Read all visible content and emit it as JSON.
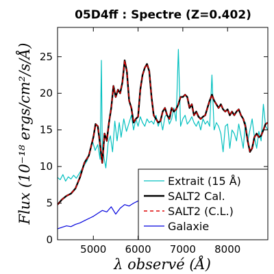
{
  "chart_data": {
    "type": "line",
    "title": "05D4ff : Spectre (Z=0.402)",
    "xlabel": "λ observé (Å)",
    "ylabel": "Flux (10⁻¹⁸ ergs/cm²/s/Å)",
    "xlim": [
      4200,
      8900
    ],
    "ylim": [
      0,
      29
    ],
    "xticks": [
      5000,
      6000,
      7000,
      8000
    ],
    "yticks": [
      0,
      5,
      10,
      15,
      20,
      25
    ],
    "legend_position": "lower-right",
    "series": [
      {
        "name": "Extrait (15 Å)",
        "color": "#00bfbf",
        "style": "solid",
        "x": [
          4200,
          4260,
          4320,
          4380,
          4440,
          4500,
          4560,
          4620,
          4680,
          4740,
          4800,
          4860,
          4920,
          4980,
          5040,
          5100,
          5150,
          5180,
          5200,
          5230,
          5280,
          5330,
          5380,
          5430,
          5480,
          5530,
          5580,
          5620,
          5680,
          5740,
          5800,
          5850,
          5900,
          5950,
          6000,
          6050,
          6100,
          6150,
          6200,
          6250,
          6300,
          6350,
          6400,
          6450,
          6500,
          6550,
          6600,
          6650,
          6700,
          6750,
          6800,
          6850,
          6900,
          6950,
          7000,
          7050,
          7100,
          7150,
          7200,
          7250,
          7300,
          7350,
          7400,
          7450,
          7500,
          7550,
          7600,
          7650,
          7700,
          7750,
          7800,
          7850,
          7900,
          7950,
          8000,
          8050,
          8100,
          8150,
          8200,
          8250,
          8300,
          8350,
          8400,
          8450,
          8500,
          8550,
          8600,
          8650,
          8700,
          8750,
          8800,
          8850,
          8900
        ],
        "y": [
          8.5,
          8.2,
          8.9,
          8.0,
          8.6,
          8.3,
          8.8,
          8.4,
          9.0,
          9.6,
          10.2,
          10.8,
          11.8,
          13.5,
          12.2,
          13.0,
          11.0,
          24.5,
          12.5,
          11.5,
          9.8,
          13.2,
          14.2,
          12.0,
          16.2,
          13.5,
          16.0,
          14.0,
          16.5,
          14.8,
          16.0,
          17.0,
          15.0,
          16.5,
          15.5,
          16.8,
          16.0,
          15.5,
          16.5,
          16.0,
          16.2,
          15.8,
          17.0,
          15.5,
          16.5,
          15.0,
          16.8,
          17.2,
          15.8,
          16.5,
          18.0,
          16.2,
          26.0,
          15.5,
          16.5,
          17.0,
          15.8,
          16.2,
          16.8,
          16.0,
          15.5,
          16.2,
          15.0,
          16.5,
          15.8,
          16.2,
          15.5,
          22.5,
          15.0,
          16.0,
          15.5,
          14.5,
          12.0,
          15.5,
          15.8,
          12.5,
          15.0,
          14.5,
          13.5,
          15.8,
          14.2,
          12.5,
          16.0,
          13.5,
          15.0,
          16.5,
          14.0,
          12.5,
          14.8,
          13.5,
          18.5,
          15.5,
          15.0
        ]
      },
      {
        "name": "SALT2 Cal.",
        "color": "#000000",
        "style": "solid",
        "x": [
          4200,
          4300,
          4400,
          4500,
          4600,
          4700,
          4800,
          4900,
          5000,
          5050,
          5100,
          5150,
          5200,
          5250,
          5300,
          5350,
          5400,
          5450,
          5500,
          5550,
          5600,
          5650,
          5700,
          5750,
          5800,
          5850,
          5900,
          5950,
          6000,
          6050,
          6100,
          6150,
          6200,
          6250,
          6300,
          6350,
          6400,
          6450,
          6500,
          6550,
          6600,
          6650,
          6700,
          6750,
          6800,
          6850,
          6900,
          6950,
          7000,
          7050,
          7100,
          7150,
          7200,
          7250,
          7300,
          7350,
          7400,
          7450,
          7500,
          7550,
          7600,
          7650,
          7700,
          7750,
          7800,
          7850,
          7900,
          7950,
          8000,
          8050,
          8100,
          8150,
          8200,
          8250,
          8300,
          8350,
          8400,
          8450,
          8500,
          8550,
          8600,
          8650,
          8700,
          8750,
          8800,
          8850,
          8900
        ],
        "y": [
          4.8,
          5.5,
          6.0,
          6.3,
          7.0,
          8.5,
          10.5,
          11.5,
          14.0,
          15.8,
          15.5,
          13.0,
          10.5,
          14.5,
          13.5,
          16.0,
          18.0,
          21.0,
          19.5,
          20.5,
          20.0,
          21.5,
          24.5,
          23.0,
          19.0,
          18.0,
          16.0,
          16.5,
          16.8,
          20.5,
          22.5,
          23.5,
          24.0,
          23.0,
          19.5,
          17.0,
          16.5,
          16.0,
          16.2,
          17.5,
          18.0,
          17.0,
          16.5,
          18.0,
          17.5,
          17.8,
          18.5,
          19.5,
          19.5,
          19.8,
          19.5,
          18.0,
          18.5,
          17.0,
          17.5,
          16.8,
          16.5,
          16.8,
          17.0,
          18.0,
          19.0,
          19.8,
          19.0,
          18.5,
          18.0,
          18.5,
          17.8,
          17.5,
          17.8,
          17.0,
          17.5,
          17.0,
          17.5,
          17.8,
          17.0,
          16.5,
          15.5,
          13.5,
          12.0,
          12.5,
          14.0,
          14.5,
          14.0,
          14.2,
          15.0,
          15.8,
          16.0
        ]
      },
      {
        "name": "SALT2 (C.L.)",
        "color": "#dd0000",
        "style": "dashed",
        "x": [
          4200,
          4300,
          4400,
          4500,
          4600,
          4700,
          4800,
          4900,
          5000,
          5050,
          5100,
          5150,
          5200,
          5250,
          5300,
          5350,
          5400,
          5450,
          5500,
          5550,
          5600,
          5650,
          5700,
          5750,
          5800,
          5850,
          5900,
          5950,
          6000,
          6050,
          6100,
          6150,
          6200,
          6250,
          6300,
          6350,
          6400,
          6450,
          6500,
          6550,
          6600,
          6650,
          6700,
          6750,
          6800,
          6850,
          6900,
          6950,
          7000,
          7050,
          7100,
          7150,
          7200,
          7250,
          7300,
          7350,
          7400,
          7450,
          7500,
          7550,
          7600,
          7650,
          7700,
          7750,
          7800,
          7850,
          7900,
          7950,
          8000,
          8050,
          8100,
          8150,
          8200,
          8250,
          8300,
          8350,
          8400,
          8450,
          8500,
          8550,
          8600,
          8650,
          8700,
          8750,
          8800,
          8850,
          8900
        ],
        "y": [
          4.8,
          5.5,
          6.0,
          6.3,
          7.0,
          8.5,
          10.5,
          11.5,
          14.0,
          15.8,
          15.5,
          13.0,
          10.5,
          14.5,
          13.5,
          16.0,
          18.0,
          21.0,
          19.5,
          20.5,
          20.0,
          21.5,
          24.5,
          23.0,
          19.0,
          18.0,
          16.0,
          16.5,
          16.8,
          20.5,
          22.5,
          23.5,
          24.0,
          23.0,
          19.5,
          17.0,
          16.5,
          16.0,
          16.2,
          17.5,
          18.0,
          17.0,
          16.5,
          18.0,
          17.5,
          17.8,
          18.5,
          19.5,
          19.5,
          19.8,
          19.5,
          18.0,
          18.5,
          17.0,
          17.5,
          16.8,
          16.5,
          16.8,
          17.0,
          18.0,
          19.0,
          19.8,
          19.0,
          18.5,
          18.0,
          18.5,
          17.8,
          17.5,
          17.8,
          17.0,
          17.5,
          17.0,
          17.5,
          17.8,
          17.0,
          16.5,
          15.5,
          13.5,
          12.0,
          12.5,
          14.0,
          14.5,
          14.0,
          14.2,
          15.0,
          15.8,
          16.0
        ]
      },
      {
        "name": "Galaxie",
        "color": "#0000dd",
        "style": "solid",
        "x": [
          4200,
          4300,
          4400,
          4500,
          4600,
          4700,
          4800,
          4900,
          5000,
          5100,
          5200,
          5300,
          5400,
          5500,
          5600,
          5700,
          5800,
          5900,
          6000,
          6100,
          6200,
          6300,
          6400,
          6500,
          6600,
          6700,
          6800,
          6900,
          7000,
          7100,
          7200,
          7300,
          7400,
          7500,
          7600,
          7700,
          7800,
          7900,
          8000,
          8100,
          8200,
          8300,
          8400,
          8500,
          8600,
          8700,
          8800,
          8900
        ],
        "y": [
          1.5,
          1.7,
          1.9,
          1.8,
          2.1,
          2.3,
          2.6,
          2.9,
          3.2,
          3.6,
          4.0,
          3.8,
          4.5,
          3.5,
          4.3,
          4.8,
          4.6,
          5.0,
          5.3,
          5.6,
          5.5,
          5.9,
          6.0,
          6.2,
          6.1,
          6.5,
          6.8,
          6.6,
          7.0,
          7.2,
          7.1,
          7.5,
          7.4,
          7.6,
          8.0,
          7.8,
          8.2,
          8.1,
          8.3,
          8.4,
          8.2,
          8.5,
          8.3,
          8.6,
          8.5,
          8.4,
          8.6,
          8.5
        ]
      }
    ]
  }
}
